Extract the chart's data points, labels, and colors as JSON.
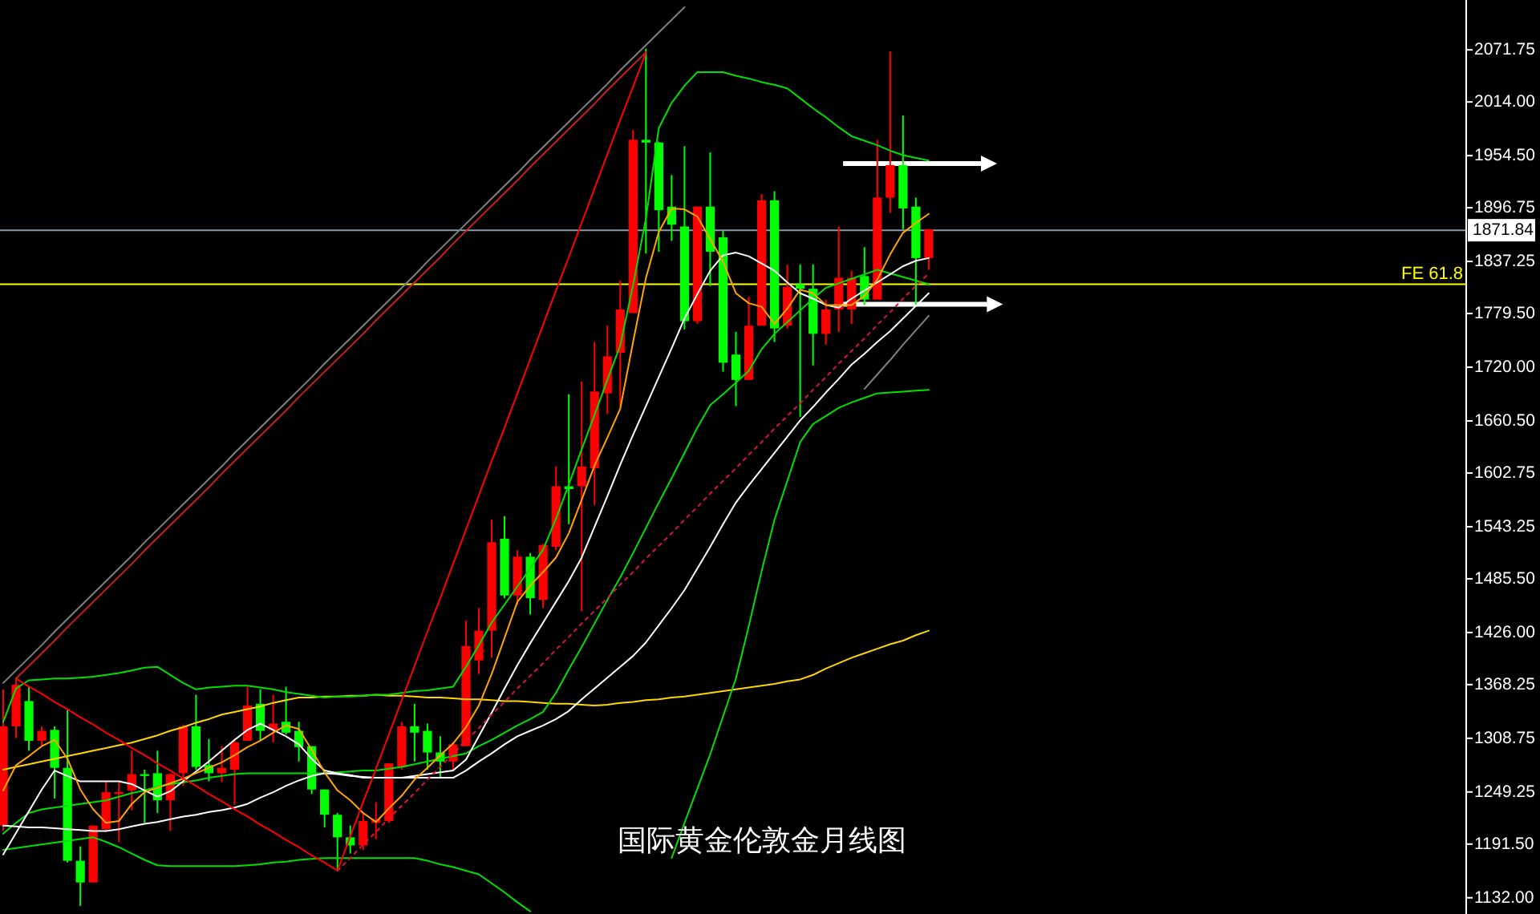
{
  "chart_data": {
    "type": "candlestick",
    "title": "国际黄金伦敦金月线图",
    "categories": [
      null,
      null,
      null,
      null,
      null,
      null,
      null,
      null,
      null,
      null,
      null,
      null,
      null,
      null,
      null,
      null,
      null,
      null,
      null,
      null,
      null,
      null,
      null,
      null,
      null,
      null,
      null,
      null,
      null,
      null,
      null,
      null,
      null,
      null,
      null,
      null,
      null,
      null,
      null,
      null,
      null,
      null,
      null,
      null,
      null,
      null,
      null,
      null,
      null,
      null,
      null,
      null,
      null,
      null,
      null,
      null,
      null,
      null,
      null,
      null,
      null,
      null,
      null,
      null,
      null,
      null,
      null,
      null,
      null,
      null,
      null,
      null,
      null
    ],
    "ohlc": [
      [
        1212,
        1363,
        1206,
        1322
      ],
      [
        1322,
        1375,
        1309,
        1368
      ],
      [
        1350,
        1366,
        1295,
        1306
      ],
      [
        1306,
        1322,
        1300,
        1317
      ],
      [
        1318,
        1322,
        1242,
        1276
      ],
      [
        1276,
        1340,
        1171,
        1173
      ],
      [
        1173,
        1189,
        1123,
        1149
      ],
      [
        1149,
        1212,
        1149,
        1212
      ],
      [
        1208,
        1261,
        1206,
        1249
      ],
      [
        1247,
        1261,
        1194,
        1249
      ],
      [
        1251,
        1295,
        1229,
        1269
      ],
      [
        1269,
        1274,
        1215,
        1267
      ],
      [
        1270,
        1295,
        1226,
        1240
      ],
      [
        1240,
        1270,
        1206,
        1269
      ],
      [
        1270,
        1324,
        1256,
        1322
      ],
      [
        1322,
        1357,
        1274,
        1277
      ],
      [
        1279,
        1308,
        1261,
        1270
      ],
      [
        1270,
        1300,
        1260,
        1276
      ],
      [
        1274,
        1308,
        1235,
        1304
      ],
      [
        1306,
        1366,
        1306,
        1345
      ],
      [
        1347,
        1363,
        1306,
        1317
      ],
      [
        1318,
        1357,
        1304,
        1325
      ],
      [
        1327,
        1366,
        1313,
        1315
      ],
      [
        1317,
        1327,
        1283,
        1299
      ],
      [
        1300,
        1300,
        1247,
        1252
      ],
      [
        1252,
        1252,
        1210,
        1224
      ],
      [
        1224,
        1226,
        1162,
        1199
      ],
      [
        1199,
        1212,
        1181,
        1190
      ],
      [
        1190,
        1226,
        1185,
        1217
      ],
      [
        1215,
        1238,
        1197,
        1219
      ],
      [
        1217,
        1281,
        1215,
        1281
      ],
      [
        1277,
        1327,
        1274,
        1322
      ],
      [
        1322,
        1347,
        1283,
        1315
      ],
      [
        1317,
        1325,
        1274,
        1293
      ],
      [
        1293,
        1311,
        1265,
        1283
      ],
      [
        1283,
        1304,
        1274,
        1302
      ],
      [
        1300,
        1439,
        1300,
        1411
      ],
      [
        1395,
        1453,
        1380,
        1428
      ],
      [
        1428,
        1551,
        1398,
        1526
      ],
      [
        1530,
        1555,
        1464,
        1467
      ],
      [
        1467,
        1517,
        1457,
        1510
      ],
      [
        1510,
        1514,
        1446,
        1464
      ],
      [
        1462,
        1524,
        1453,
        1523
      ],
      [
        1521,
        1610,
        1517,
        1588
      ],
      [
        1588,
        1690,
        1546,
        1585
      ],
      [
        1588,
        1704,
        1450,
        1610
      ],
      [
        1608,
        1748,
        1567,
        1693
      ],
      [
        1691,
        1766,
        1668,
        1732
      ],
      [
        1736,
        1816,
        1677,
        1784
      ],
      [
        1780,
        1983,
        1780,
        1972
      ],
      [
        1972,
        2073,
        1846,
        1969
      ],
      [
        1969,
        1970,
        1848,
        1894
      ],
      [
        1898,
        1933,
        1860,
        1878
      ],
      [
        1876,
        1965,
        1762,
        1771
      ],
      [
        1771,
        1898,
        1768,
        1898
      ],
      [
        1898,
        1958,
        1810,
        1848
      ],
      [
        1864,
        1871,
        1715,
        1725
      ],
      [
        1734,
        1759,
        1677,
        1706
      ],
      [
        1706,
        1798,
        1706,
        1766
      ],
      [
        1766,
        1912,
        1766,
        1905
      ],
      [
        1905,
        1915,
        1748,
        1763
      ],
      [
        1766,
        1834,
        1763,
        1809
      ],
      [
        1812,
        1834,
        1665,
        1807
      ],
      [
        1807,
        1834,
        1722,
        1757
      ],
      [
        1757,
        1795,
        1745,
        1784
      ],
      [
        1784,
        1876,
        1759,
        1819
      ],
      [
        1784,
        1827,
        1768,
        1819
      ],
      [
        1821,
        1853,
        1789,
        1795
      ],
      [
        1795,
        1972,
        1795,
        1908
      ],
      [
        1908,
        2070,
        1891,
        1944
      ],
      [
        1944,
        1999,
        1873,
        1896
      ],
      [
        1898,
        1908,
        1789,
        1841
      ],
      [
        1841,
        1873,
        1828,
        1873
      ]
    ],
    "colors": [
      "#ff0000",
      "#ff0000",
      "#00ff00",
      "#ff0000",
      "#00ff00",
      "#00ff00",
      "#00ff00",
      "#ff0000",
      "#ff0000",
      "#ff0000",
      "#ff0000",
      "#00ff00",
      "#00ff00",
      "#ff0000",
      "#ff0000",
      "#00ff00",
      "#00ff00",
      "#ff0000",
      "#ff0000",
      "#ff0000",
      "#00ff00",
      "#ff0000",
      "#00ff00",
      "#00ff00",
      "#00ff00",
      "#00ff00",
      "#00ff00",
      "#00ff00",
      "#ff0000",
      "#ff0000",
      "#ff0000",
      "#ff0000",
      "#00ff00",
      "#00ff00",
      "#00ff00",
      "#ff0000",
      "#ff0000",
      "#ff0000",
      "#ff0000",
      "#00ff00",
      "#ff0000",
      "#00ff00",
      "#ff0000",
      "#ff0000",
      "#00ff00",
      "#ff0000",
      "#ff0000",
      "#ff0000",
      "#ff0000",
      "#ff0000",
      "#00ff00",
      "#00ff00",
      "#00ff00",
      "#00ff00",
      "#ff0000",
      "#00ff00",
      "#00ff00",
      "#00ff00",
      "#ff0000",
      "#ff0000",
      "#00ff00",
      "#ff0000",
      "#00ff00",
      "#00ff00",
      "#ff0000",
      "#ff0000",
      "#ff0000",
      "#00ff00",
      "#ff0000",
      "#ff0000",
      "#00ff00",
      "#00ff00",
      "#ff0000"
    ],
    "series": [
      {
        "type": "line",
        "color": "#ffd700",
        "values": [
          1274,
          1277,
          1280,
          1283,
          1286,
          1289,
          1292,
          1295,
          1298,
          1301,
          1304,
          1308,
          1312,
          1317,
          1321,
          1326,
          1330,
          1335,
          1338,
          1341,
          1344,
          1348,
          1351,
          1354,
          1354,
          1355,
          1355,
          1356,
          1356,
          1357,
          1356,
          1356,
          1355,
          1354,
          1354,
          1353,
          1352,
          1352,
          1351,
          1350,
          1350,
          1349,
          1348,
          1347,
          1347,
          1346,
          1345,
          1346,
          1348,
          1349,
          1351,
          1352,
          1354,
          1355,
          1357,
          1359,
          1361,
          1363,
          1365,
          1367,
          1369,
          1372,
          1374,
          1379,
          1386,
          1392,
          1398,
          1403,
          1408,
          1413,
          1417,
          1423,
          1428
        ]
      },
      {
        "type": "line",
        "color": "#00e000",
        "values": [
          1327,
          1364,
          1373,
          1374,
          1375,
          1375,
          1376,
          1377,
          1379,
          1381,
          1384,
          1387,
          1388,
          1379,
          1370,
          1363,
          1365,
          1366,
          1367,
          1367,
          1365,
          1363,
          1360,
          1358,
          1356,
          1354,
          1355,
          1355,
          1356,
          1357,
          1357,
          1359,
          1361,
          1362,
          1364,
          1366,
          1388,
          1412,
          1437,
          1457,
          1477,
          1497,
          1518,
          1552,
          1590,
          1629,
          1667,
          1706,
          1744,
          1811,
          1885,
          1985,
          2013,
          2032,
          2047,
          2047,
          2047,
          2043,
          2040,
          2036,
          2033,
          2029,
          2018,
          2007,
          1997,
          1986,
          1976,
          1971,
          1966,
          1960,
          1955,
          1952,
          1949
        ]
      },
      {
        "type": "line",
        "color": "#00e000",
        "values": [
          1203,
          1215,
          1226,
          1230,
          1232,
          1234,
          1236,
          1238,
          1240,
          1244,
          1248,
          1251,
          1255,
          1258,
          1260,
          1262,
          1265,
          1267,
          1269,
          1270,
          1270,
          1270,
          1270,
          1270,
          1270,
          1270,
          1271,
          1272,
          1273,
          1273,
          1275,
          1277,
          1280,
          1283,
          1286,
          1289,
          1292,
          1300,
          1307,
          1315,
          1323,
          1330,
          1338,
          1359,
          1385,
          1410,
          1436,
          1462,
          1487,
          1514,
          1542,
          1570,
          1597,
          1625,
          1653,
          1678,
          1690,
          1703,
          1716,
          1740,
          1757,
          1770,
          1783,
          1796,
          1808,
          1813,
          1818,
          1823,
          1828,
          1824,
          1820,
          1816,
          1812
        ]
      },
      {
        "type": "line",
        "color": "#00e000",
        "values": [
          1185,
          1187,
          1189,
          1191,
          1193,
          1195,
          1197,
          1199,
          1194,
          1188,
          1181,
          1174,
          1168,
          1167,
          1167,
          1167,
          1167,
          1167,
          1167,
          1168,
          1169,
          1171,
          1172,
          1174,
          1175,
          1176,
          1176,
          1176,
          1176,
          1176,
          1176,
          1176,
          1176,
          1173,
          1169,
          1166,
          1162,
          1158,
          1148,
          1138,
          1127,
          1117,
          null,
          null,
          null,
          null,
          null,
          null,
          null,
          null,
          null,
          null,
          1176,
          1215,
          1253,
          1291,
          1333,
          1375,
          1433,
          1494,
          1551,
          1594,
          1637,
          1657,
          1666,
          1675,
          1681,
          1686,
          1691,
          1692,
          1693,
          1694,
          1695
        ]
      },
      {
        "type": "line",
        "color": "#ffffff",
        "values": [
          1180,
          1204,
          1228,
          1252,
          1273,
          1267,
          1261,
          1261,
          1261,
          1261,
          1258,
          1251,
          1244,
          1250,
          1261,
          1272,
          1283,
          1295,
          1307,
          1318,
          1325,
          1318,
          1311,
          1302,
          1286,
          1273,
          1270,
          1268,
          1265,
          1265,
          1265,
          1265,
          1267,
          1269,
          1271,
          1273,
          1285,
          1311,
          1337,
          1364,
          1390,
          1414,
          1437,
          1460,
          1483,
          1509,
          1543,
          1577,
          1612,
          1645,
          1677,
          1709,
          1741,
          1774,
          1801,
          1827,
          1844,
          1847,
          1843,
          1835,
          1827,
          1814,
          1802,
          1796,
          1789,
          1786,
          1796,
          1805,
          1814,
          1823,
          1832,
          1838,
          1841
        ]
      },
      {
        "type": "line",
        "color": "#ffffff",
        "values": [
          1212,
          1211,
          1210,
          1210,
          1209,
          1208,
          1207,
          1206,
          1206,
          1208,
          1211,
          1214,
          1216,
          1219,
          1222,
          1224,
          1227,
          1229,
          1232,
          1236,
          1243,
          1249,
          1256,
          1262,
          1267,
          1270,
          1269,
          1267,
          1266,
          1265,
          1265,
          1265,
          1265,
          1265,
          1265,
          1265,
          1273,
          1283,
          1292,
          1302,
          1311,
          1317,
          1323,
          1330,
          1339,
          1352,
          1364,
          1376,
          1388,
          1400,
          1415,
          1434,
          1453,
          1473,
          1497,
          1521,
          1546,
          1570,
          1589,
          1607,
          1625,
          1643,
          1661,
          1676,
          1692,
          1707,
          1723,
          1735,
          1748,
          1760,
          1774,
          1788,
          1802
        ]
      },
      {
        "type": "line",
        "color": "#ffa500",
        "values": [
          1251,
          1279,
          1289,
          1300,
          1307,
          1286,
          1252,
          1230,
          1215,
          1217,
          1236,
          1249,
          1254,
          1259,
          1264,
          1270,
          1276,
          1282,
          1290,
          1299,
          1306,
          1315,
          1323,
          1319,
          1296,
          1271,
          1251,
          1240,
          1226,
          1216,
          1231,
          1245,
          1263,
          1276,
          1290,
          1303,
          1321,
          1345,
          1380,
          1420,
          1460,
          1478,
          1493,
          1509,
          1536,
          1573,
          1611,
          1642,
          1674,
          1748,
          1819,
          1870,
          1896,
          1895,
          1887,
          1862,
          1837,
          1802,
          1791,
          1787,
          1768,
          1785,
          1806,
          1802,
          1789,
          1789,
          1789,
          1799,
          1817,
          1845,
          1869,
          1880,
          1890
        ]
      },
      {
        "type": "line",
        "color": "#ff0000",
        "values": [
          null,
          1375,
          1366,
          1358,
          1349,
          1341,
          1332,
          1324,
          1315,
          1307,
          1298,
          1290,
          1281,
          1273,
          1264,
          1256,
          1247,
          1239,
          1230,
          1222,
          1213,
          1205,
          1196,
          1188,
          1179,
          1171,
          1162,
          null,
          null,
          null,
          null,
          null,
          null,
          null,
          null,
          null,
          null,
          null,
          null,
          null,
          null,
          null,
          null,
          null,
          null,
          null,
          null,
          null,
          null,
          null,
          null,
          null,
          null,
          null,
          null,
          null,
          null,
          null,
          null,
          null,
          null,
          null,
          null,
          null,
          null,
          null,
          null,
          null,
          null,
          null,
          null,
          null,
          null
        ]
      },
      {
        "type": "line",
        "color": "#ff0000",
        "values": [
          null,
          null,
          null,
          null,
          null,
          null,
          null,
          null,
          null,
          null,
          null,
          null,
          null,
          null,
          null,
          null,
          null,
          null,
          null,
          null,
          null,
          null,
          null,
          null,
          null,
          null,
          1162,
          1200,
          1238,
          1275,
          1313,
          1351,
          1389,
          1427,
          1464,
          1502,
          1540,
          1578,
          1616,
          1653,
          1691,
          1729,
          1767,
          1805,
          1842,
          1880,
          1918,
          1956,
          1994,
          2031,
          2069,
          null,
          null,
          null,
          null,
          null,
          null,
          null,
          null,
          null,
          null,
          null,
          null,
          null,
          null,
          null,
          null,
          null,
          null,
          null,
          null,
          null,
          null
        ]
      },
      {
        "type": "line",
        "color": "#c81e1e",
        "values": [
          null,
          1375,
          1389,
          1403,
          1417,
          1432,
          1446,
          1460,
          1474,
          1488,
          1502,
          1517,
          1531,
          1545,
          1559,
          1573,
          1587,
          1602,
          1616,
          1630,
          1644,
          1658,
          1672,
          1687,
          1701,
          1715,
          1729,
          1743,
          1757,
          1772,
          1786,
          1800,
          1814,
          1828,
          1842,
          1857,
          1871,
          1885,
          1899,
          1913,
          1927,
          1942,
          1956,
          1970,
          1984,
          1998,
          2012,
          2027,
          2041,
          2055,
          2069,
          null,
          null,
          null,
          null,
          null,
          null,
          null,
          null,
          null,
          null,
          null,
          null,
          null,
          null,
          null,
          null,
          null,
          null,
          null,
          null,
          null,
          null
        ]
      },
      {
        "type": "line",
        "color": "#dc143c",
        "line_style": "dotted",
        "values": [
          null,
          null,
          null,
          null,
          null,
          null,
          null,
          null,
          null,
          null,
          null,
          null,
          null,
          null,
          null,
          null,
          null,
          null,
          null,
          null,
          null,
          null,
          null,
          null,
          null,
          null,
          1162,
          1176,
          1191,
          1205,
          1220,
          1234,
          1248,
          1263,
          1277,
          1292,
          1306,
          1320,
          1335,
          1349,
          1364,
          1378,
          1392,
          1407,
          1421,
          1436,
          1450,
          1464,
          1479,
          1493,
          1508,
          1522,
          1536,
          1551,
          1565,
          1580,
          1594,
          1608,
          1623,
          1637,
          1652,
          1666,
          1680,
          1695,
          1709,
          1724,
          1738,
          1752,
          1767,
          1781,
          1796,
          1810,
          1824
        ]
      },
      {
        "type": "line",
        "color": "#808080",
        "values": [
          1370,
          1384,
          1398,
          1412,
          1427,
          1441,
          1455,
          1469,
          1483,
          1497,
          1511,
          1526,
          1540,
          1554,
          1568,
          1582,
          1596,
          1610,
          1625,
          1639,
          1653,
          1667,
          1681,
          1695,
          1709,
          1724,
          1738,
          1752,
          1766,
          1780,
          1794,
          1808,
          1822,
          1837,
          1851,
          1865,
          1879,
          1893,
          1907,
          1921,
          1935,
          1950,
          1964,
          1978,
          1992,
          2006,
          2020,
          2034,
          2049,
          2063,
          2077,
          2091,
          2105,
          2119,
          null,
          null,
          null,
          null,
          null,
          null,
          null,
          null,
          null,
          null,
          null,
          null,
          null,
          null,
          null,
          null,
          null,
          null,
          null
        ]
      },
      {
        "type": "line",
        "color": "#808080",
        "values": [
          null,
          null,
          null,
          null,
          null,
          null,
          null,
          null,
          null,
          null,
          null,
          null,
          null,
          null,
          null,
          null,
          null,
          null,
          null,
          null,
          null,
          null,
          null,
          null,
          null,
          null,
          null,
          null,
          null,
          null,
          null,
          null,
          null,
          null,
          null,
          null,
          null,
          null,
          null,
          null,
          null,
          null,
          null,
          null,
          null,
          null,
          null,
          null,
          null,
          null,
          null,
          null,
          null,
          null,
          null,
          null,
          null,
          null,
          null,
          null,
          null,
          null,
          null,
          null,
          null,
          null,
          null,
          1696,
          1712,
          1728,
          1745,
          1761,
          1777
        ]
      }
    ],
    "ref_lines": [
      {
        "axis": "y",
        "value": 1871.84,
        "label": "1871.84",
        "color": "#8a9aac"
      },
      {
        "axis": "y",
        "value": 1812,
        "label": "FE 61.8",
        "color": "#ffff00"
      }
    ],
    "ylim": [
      1114,
      2127
    ],
    "yticks": [
      {
        "value": 2071.75,
        "label": "2071.75"
      },
      {
        "value": 2014,
        "label": "2014.00"
      },
      {
        "value": 1954.5,
        "label": "1954.50"
      },
      {
        "value": 1896.75,
        "label": "1896.75"
      },
      {
        "value": 1837.25,
        "label": "1837.25"
      },
      {
        "value": 1779.5,
        "label": "1779.50"
      },
      {
        "value": 1720,
        "label": "1720.00"
      },
      {
        "value": 1660.5,
        "label": "1660.50"
      },
      {
        "value": 1602.75,
        "label": "1602.75"
      },
      {
        "value": 1543.25,
        "label": "1543.25"
      },
      {
        "value": 1485.5,
        "label": "1485.50"
      },
      {
        "value": 1426,
        "label": "1426.00"
      },
      {
        "value": 1368.25,
        "label": "1368.25"
      },
      {
        "value": 1308.75,
        "label": "1308.75"
      },
      {
        "value": 1249.25,
        "label": "1249.25"
      },
      {
        "value": 1191.5,
        "label": "1191.50"
      },
      {
        "value": 1132,
        "label": "1132.00"
      }
    ],
    "tick_labels": "y"
  }
}
